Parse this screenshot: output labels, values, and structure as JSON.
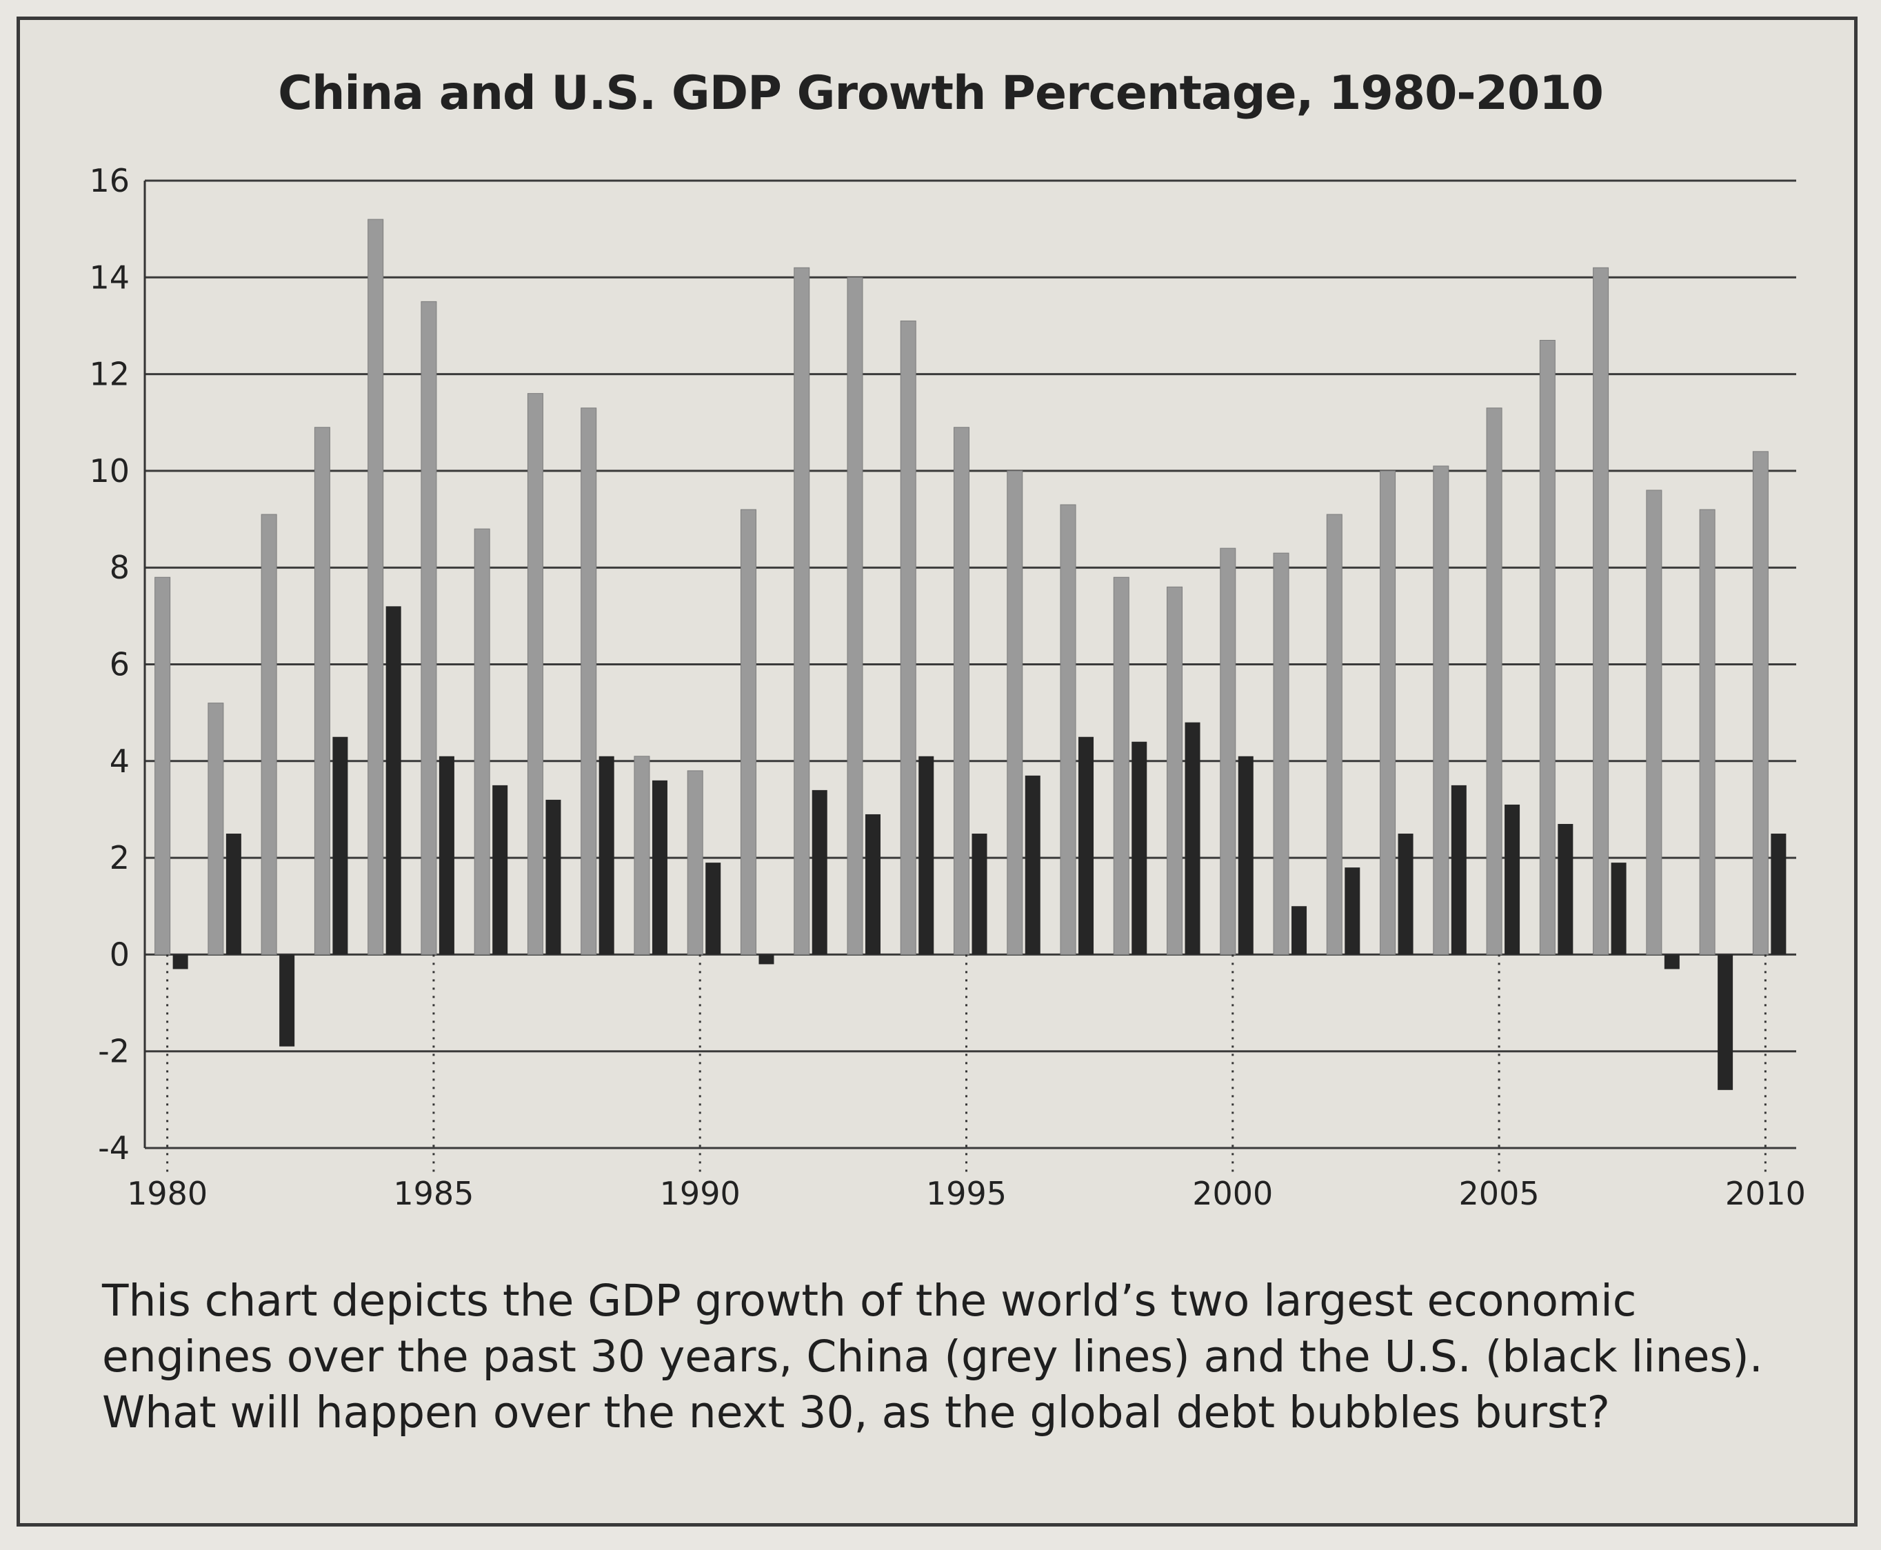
{
  "chart_data": {
    "type": "bar",
    "title": "China and U.S. GDP Growth Percentage, 1980-2010",
    "xlabel": "",
    "ylabel": "",
    "ylim": [
      -4,
      16
    ],
    "yticks": [
      16,
      14,
      12,
      10,
      8,
      6,
      4,
      2,
      0,
      -2,
      -4
    ],
    "x_tick_labels": [
      "1980",
      "1985",
      "1990",
      "1995",
      "2000",
      "2005",
      "2010"
    ],
    "grid": true,
    "categories": [
      1980,
      1981,
      1982,
      1983,
      1984,
      1985,
      1986,
      1987,
      1988,
      1989,
      1990,
      1991,
      1992,
      1993,
      1994,
      1995,
      1996,
      1997,
      1998,
      1999,
      2000,
      2001,
      2002,
      2003,
      2004,
      2005,
      2006,
      2007,
      2008,
      2009,
      2010
    ],
    "series": [
      {
        "name": "China",
        "color": "#9a9a9a",
        "values": [
          7.8,
          5.2,
          9.1,
          10.9,
          15.2,
          13.5,
          8.8,
          11.6,
          11.3,
          4.1,
          3.8,
          9.2,
          14.2,
          14.0,
          13.1,
          10.9,
          10.0,
          9.3,
          7.8,
          7.6,
          8.4,
          8.3,
          9.1,
          10.0,
          10.1,
          11.3,
          12.7,
          14.2,
          9.6,
          9.2,
          10.4
        ]
      },
      {
        "name": "U.S.",
        "color": "#262626",
        "values": [
          -0.3,
          2.5,
          -1.9,
          4.5,
          7.2,
          4.1,
          3.5,
          3.2,
          4.1,
          3.6,
          1.9,
          -0.2,
          3.4,
          2.9,
          4.1,
          2.5,
          3.7,
          4.5,
          4.4,
          4.8,
          4.1,
          1.0,
          1.8,
          2.5,
          3.5,
          3.1,
          2.7,
          1.9,
          -0.3,
          -2.8,
          2.5
        ]
      }
    ]
  },
  "caption": {
    "line1": "This chart depicts the GDP growth of the world’s two largest economic",
    "line2": "engines over the past 30 years, China (grey lines) and the U.S. (black lines).",
    "line3": "What will happen over the next 30, as the global debt bubbles burst?"
  }
}
